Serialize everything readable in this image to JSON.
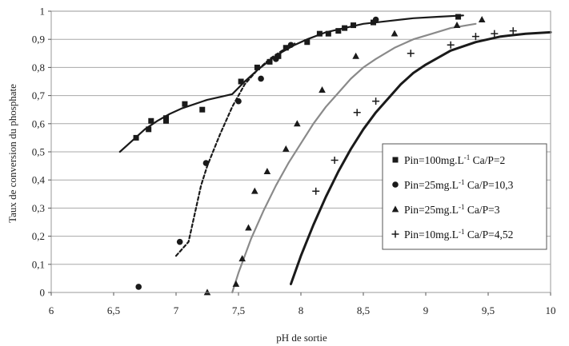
{
  "chart_data": {
    "type": "scatter",
    "xlabel": "pH de sortie",
    "ylabel": "Taux de conversion du phosphate",
    "xlim": [
      6,
      10
    ],
    "ylim": [
      0,
      1
    ],
    "x_ticks": [
      "6",
      "6,5",
      "7",
      "7,5",
      "8",
      "8,5",
      "9",
      "9,5",
      "10"
    ],
    "y_ticks": [
      "0",
      "0,1",
      "0,2",
      "0,3",
      "0,4",
      "0,5",
      "0,6",
      "0,7",
      "0,8",
      "0,9",
      "1"
    ],
    "grid": "horizontal",
    "legend_position": "right",
    "series": [
      {
        "name": "Pin=100mg.L-1 Ca/P=2",
        "legend_parts": [
          "Pin=100mg.L",
          "-1",
          " Ca/P=2"
        ],
        "marker": "square",
        "color": "#1a1a1a",
        "points": [
          [
            6.68,
            0.55
          ],
          [
            6.78,
            0.58
          ],
          [
            6.8,
            0.61
          ],
          [
            6.92,
            0.62
          ],
          [
            6.92,
            0.61
          ],
          [
            7.07,
            0.67
          ],
          [
            7.21,
            0.65
          ],
          [
            7.52,
            0.75
          ],
          [
            7.65,
            0.8
          ],
          [
            7.75,
            0.82
          ],
          [
            7.82,
            0.84
          ],
          [
            7.88,
            0.87
          ],
          [
            8.05,
            0.89
          ],
          [
            8.15,
            0.92
          ],
          [
            8.22,
            0.92
          ],
          [
            8.3,
            0.93
          ],
          [
            8.35,
            0.94
          ],
          [
            8.42,
            0.95
          ],
          [
            8.58,
            0.96
          ],
          [
            9.26,
            0.98
          ]
        ],
        "curve": [
          [
            6.55,
            0.5
          ],
          [
            6.65,
            0.54
          ],
          [
            6.75,
            0.58
          ],
          [
            6.85,
            0.61
          ],
          [
            6.95,
            0.635
          ],
          [
            7.05,
            0.655
          ],
          [
            7.15,
            0.67
          ],
          [
            7.25,
            0.685
          ],
          [
            7.35,
            0.695
          ],
          [
            7.45,
            0.705
          ],
          [
            7.55,
            0.75
          ],
          [
            7.65,
            0.79
          ],
          [
            7.75,
            0.825
          ],
          [
            7.85,
            0.855
          ],
          [
            7.95,
            0.88
          ],
          [
            8.05,
            0.9
          ],
          [
            8.2,
            0.925
          ],
          [
            8.35,
            0.94
          ],
          [
            8.5,
            0.955
          ],
          [
            8.7,
            0.965
          ],
          [
            8.9,
            0.975
          ],
          [
            9.1,
            0.98
          ],
          [
            9.3,
            0.985
          ]
        ]
      },
      {
        "name": "Pin=25mg.L-1 Ca/P=10,3",
        "legend_parts": [
          "Pin=25mg.L",
          "-1",
          " Ca/P=10,3"
        ],
        "marker": "circle",
        "color": "#1a1a1a",
        "points": [
          [
            6.7,
            0.02
          ],
          [
            7.03,
            0.18
          ],
          [
            7.24,
            0.46
          ],
          [
            7.5,
            0.68
          ],
          [
            7.68,
            0.76
          ],
          [
            7.8,
            0.83
          ],
          [
            7.92,
            0.88
          ],
          [
            8.6,
            0.97
          ]
        ],
        "curve_style": "dashed",
        "curve": [
          [
            7.0,
            0.13
          ],
          [
            7.1,
            0.18
          ],
          [
            7.15,
            0.28
          ],
          [
            7.2,
            0.38
          ],
          [
            7.25,
            0.45
          ],
          [
            7.35,
            0.56
          ],
          [
            7.45,
            0.66
          ],
          [
            7.55,
            0.74
          ],
          [
            7.65,
            0.79
          ],
          [
            7.75,
            0.83
          ],
          [
            7.85,
            0.86
          ],
          [
            7.95,
            0.885
          ]
        ]
      },
      {
        "name": "Pin=25mg.L-1 Ca/P=3",
        "legend_parts": [
          "Pin=25mg.L",
          "-1",
          " Ca/P=3"
        ],
        "marker": "triangle",
        "color": "#1a1a1a",
        "curve_color": "#8a8a8a",
        "points": [
          [
            7.25,
            0.0
          ],
          [
            7.48,
            0.03
          ],
          [
            7.53,
            0.12
          ],
          [
            7.58,
            0.23
          ],
          [
            7.63,
            0.36
          ],
          [
            7.73,
            0.43
          ],
          [
            7.88,
            0.51
          ],
          [
            7.97,
            0.6
          ],
          [
            8.17,
            0.72
          ],
          [
            8.44,
            0.84
          ],
          [
            8.75,
            0.92
          ],
          [
            9.25,
            0.95
          ],
          [
            9.45,
            0.97
          ]
        ],
        "curve": [
          [
            7.45,
            0.0
          ],
          [
            7.5,
            0.07
          ],
          [
            7.55,
            0.13
          ],
          [
            7.6,
            0.19
          ],
          [
            7.7,
            0.29
          ],
          [
            7.8,
            0.38
          ],
          [
            7.9,
            0.46
          ],
          [
            8.0,
            0.53
          ],
          [
            8.1,
            0.6
          ],
          [
            8.2,
            0.66
          ],
          [
            8.3,
            0.71
          ],
          [
            8.4,
            0.76
          ],
          [
            8.5,
            0.8
          ],
          [
            8.6,
            0.83
          ],
          [
            8.75,
            0.87
          ],
          [
            8.9,
            0.9
          ],
          [
            9.05,
            0.92
          ],
          [
            9.2,
            0.94
          ],
          [
            9.4,
            0.955
          ]
        ]
      },
      {
        "name": "Pin=10mg.L-1 Ca/P=4,52",
        "legend_parts": [
          "Pin=10mg.L",
          "-1",
          " Ca/P=4,52"
        ],
        "marker": "plus",
        "color": "#1a1a1a",
        "points": [
          [
            8.12,
            0.36
          ],
          [
            8.27,
            0.47
          ],
          [
            8.45,
            0.64
          ],
          [
            8.6,
            0.68
          ],
          [
            8.88,
            0.85
          ],
          [
            9.2,
            0.88
          ],
          [
            9.4,
            0.91
          ],
          [
            9.55,
            0.92
          ],
          [
            9.7,
            0.93
          ]
        ],
        "curve": [
          [
            7.92,
            0.03
          ],
          [
            8.0,
            0.13
          ],
          [
            8.1,
            0.24
          ],
          [
            8.2,
            0.34
          ],
          [
            8.3,
            0.43
          ],
          [
            8.4,
            0.51
          ],
          [
            8.5,
            0.58
          ],
          [
            8.6,
            0.64
          ],
          [
            8.7,
            0.69
          ],
          [
            8.8,
            0.74
          ],
          [
            8.9,
            0.78
          ],
          [
            9.0,
            0.81
          ],
          [
            9.2,
            0.86
          ],
          [
            9.4,
            0.89
          ],
          [
            9.6,
            0.91
          ],
          [
            9.8,
            0.92
          ],
          [
            10.0,
            0.925
          ]
        ]
      }
    ]
  }
}
